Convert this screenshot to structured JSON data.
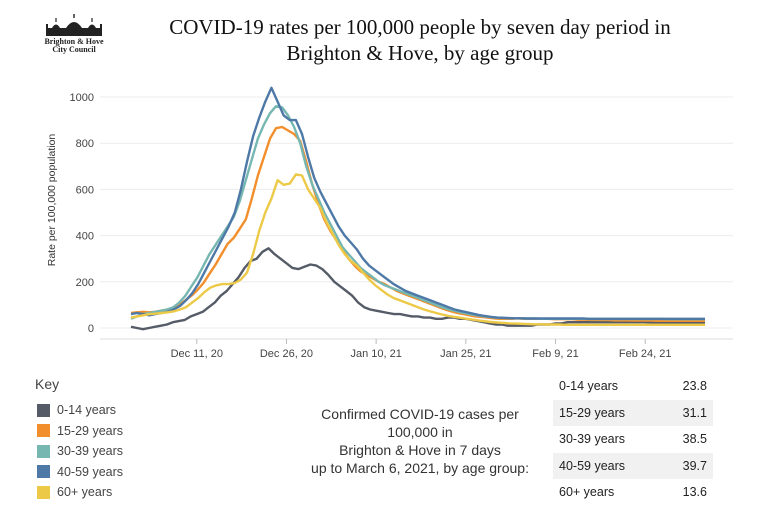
{
  "header": {
    "title_line1": "COVID-19 rates per 100,000 people by seven day period in",
    "title_line2": "Brighton & Hove, by age group",
    "logo_line1": "Brighton & Hove",
    "logo_line2": "City Council"
  },
  "chart_data": {
    "type": "line",
    "title": "COVID-19 rates per 100,000 people by seven day period in Brighton & Hove, by age group",
    "ylabel": "Rate per 100,000 population",
    "xlabel": "",
    "ylim": [
      0,
      1100
    ],
    "yticks": [
      0,
      200,
      400,
      600,
      800,
      1000
    ],
    "x_start": "2020-11-30",
    "x_end": "2021-03-06",
    "x_tick_dates": [
      "2020-12-11",
      "2020-12-26",
      "2021-01-10",
      "2021-01-25",
      "2021-02-09",
      "2021-02-24"
    ],
    "x_tick_labels": [
      "Dec 11, 20",
      "Dec 26, 20",
      "Jan 10, 21",
      "Jan 25, 21",
      "Feb 9, 21",
      "Feb 24, 21"
    ],
    "grid": true,
    "series": [
      {
        "name": "0-14 years",
        "color": "#555c67",
        "values": [
          5,
          0,
          -5,
          0,
          5,
          10,
          15,
          25,
          30,
          35,
          50,
          60,
          70,
          90,
          110,
          140,
          160,
          190,
          220,
          260,
          290,
          300,
          330,
          345,
          320,
          300,
          280,
          260,
          255,
          265,
          275,
          270,
          255,
          230,
          200,
          180,
          160,
          140,
          110,
          90,
          80,
          75,
          70,
          65,
          60,
          60,
          55,
          50,
          50,
          45,
          45,
          40,
          40,
          45,
          45,
          40,
          40,
          35,
          30,
          25,
          20,
          15,
          15,
          10,
          10,
          10,
          10,
          10,
          15,
          15,
          15,
          20,
          20,
          25,
          25,
          25,
          25,
          25,
          25,
          25,
          25,
          25,
          25,
          25,
          25,
          25,
          25,
          24,
          24,
          24,
          24,
          24,
          24,
          24,
          24,
          24,
          24
        ]
      },
      {
        "name": "15-29 years",
        "color": "#f28e2b",
        "values": [
          65,
          68,
          70,
          68,
          70,
          75,
          80,
          85,
          100,
          120,
          140,
          165,
          195,
          235,
          275,
          320,
          365,
          390,
          430,
          470,
          560,
          660,
          740,
          820,
          865,
          870,
          855,
          840,
          810,
          720,
          620,
          540,
          470,
          420,
          380,
          340,
          300,
          270,
          245,
          230,
          215,
          200,
          190,
          175,
          160,
          150,
          140,
          130,
          120,
          110,
          100,
          90,
          80,
          72,
          65,
          60,
          55,
          50,
          48,
          45,
          42,
          40,
          40,
          40,
          42,
          40,
          40,
          40,
          40,
          40,
          38,
          38,
          38,
          38,
          36,
          36,
          35,
          35,
          34,
          34,
          33,
          33,
          33,
          32,
          32,
          32,
          32,
          31,
          31,
          31,
          31,
          31,
          31,
          31,
          31,
          31
        ]
      },
      {
        "name": "30-39 years",
        "color": "#76b7b2",
        "values": [
          40,
          50,
          60,
          65,
          70,
          75,
          80,
          90,
          110,
          140,
          180,
          220,
          270,
          320,
          360,
          400,
          440,
          480,
          550,
          640,
          730,
          820,
          880,
          930,
          960,
          955,
          920,
          870,
          800,
          700,
          620,
          560,
          500,
          450,
          400,
          350,
          320,
          290,
          260,
          240,
          220,
          200,
          185,
          175,
          165,
          155,
          145,
          135,
          125,
          115,
          105,
          95,
          85,
          78,
          72,
          66,
          60,
          56,
          52,
          49,
          46,
          44,
          43,
          42,
          42,
          41,
          41,
          41,
          40,
          40,
          40,
          40,
          40,
          40,
          40,
          40,
          39,
          39,
          39,
          39,
          39,
          39,
          39,
          39,
          39,
          39,
          39,
          39,
          39,
          38,
          38,
          38,
          38,
          38,
          38,
          38
        ]
      },
      {
        "name": "40-59 years",
        "color": "#4e79a7",
        "values": [
          60,
          65,
          60,
          55,
          60,
          65,
          70,
          80,
          95,
          120,
          150,
          190,
          240,
          290,
          340,
          390,
          440,
          500,
          600,
          720,
          830,
          910,
          980,
          1040,
          980,
          920,
          900,
          900,
          840,
          740,
          650,
          590,
          540,
          490,
          440,
          400,
          370,
          340,
          300,
          270,
          250,
          230,
          210,
          190,
          175,
          160,
          150,
          140,
          130,
          120,
          110,
          100,
          90,
          80,
          74,
          68,
          62,
          56,
          52,
          48,
          45,
          44,
          43,
          42,
          42,
          41,
          41,
          41,
          41,
          41,
          41,
          41,
          41,
          41,
          41,
          40,
          40,
          40,
          40,
          40,
          40,
          40,
          40,
          40,
          40,
          40,
          40,
          40,
          40,
          40,
          40,
          40,
          40,
          40,
          40
        ]
      },
      {
        "name": "60+ years",
        "color": "#edc948",
        "values": [
          45,
          50,
          55,
          60,
          62,
          65,
          68,
          72,
          80,
          90,
          110,
          130,
          155,
          175,
          185,
          190,
          190,
          195,
          210,
          240,
          320,
          420,
          500,
          560,
          640,
          620,
          625,
          665,
          660,
          600,
          560,
          520,
          460,
          410,
          360,
          320,
          290,
          270,
          240,
          210,
          185,
          165,
          145,
          130,
          120,
          110,
          100,
          90,
          80,
          72,
          65,
          58,
          52,
          48,
          44,
          40,
          36,
          32,
          29,
          26,
          24,
          22,
          20,
          19,
          18,
          17,
          16,
          16,
          15,
          15,
          15,
          14,
          14,
          14,
          14,
          14,
          14,
          14,
          14,
          14,
          14,
          14,
          14,
          14,
          14,
          14,
          14,
          14,
          14,
          14,
          14,
          14,
          14,
          14,
          14
        ]
      }
    ]
  },
  "legend": {
    "title": "Key",
    "items": [
      {
        "label": "0-14 years",
        "color": "#555c67"
      },
      {
        "label": "15-29 years",
        "color": "#f28e2b"
      },
      {
        "label": "30-39 years",
        "color": "#76b7b2"
      },
      {
        "label": "40-59 years",
        "color": "#4e79a7"
      },
      {
        "label": "60+ years",
        "color": "#edc948"
      }
    ]
  },
  "summary": {
    "line1": "Confirmed COVID-19 cases per",
    "line2": "100,000 in",
    "line3": "Brighton & Hove in 7 days",
    "line4": "up to March 6, 2021, by age group:"
  },
  "table": {
    "rows": [
      {
        "age": "0-14 years",
        "rate": "23.8"
      },
      {
        "age": "15-29  years",
        "rate": "31.1"
      },
      {
        "age": "30-39 years",
        "rate": "38.5"
      },
      {
        "age": "40-59 years",
        "rate": "39.7"
      },
      {
        "age": "60+ years",
        "rate": "13.6"
      }
    ]
  }
}
